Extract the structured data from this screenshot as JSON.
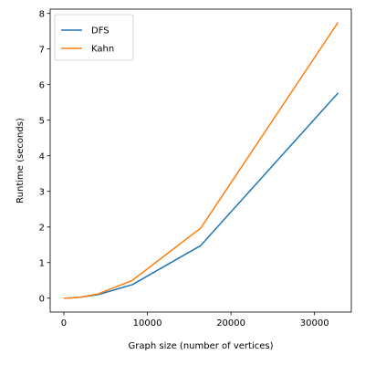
{
  "chart_data": {
    "type": "line",
    "xlabel": "Graph size (number of vertices)",
    "ylabel": "Runtime (seconds)",
    "xlim": [
      -1638,
      34406
    ],
    "ylim": [
      -0.39,
      8.12
    ],
    "xticks": [
      0,
      10000,
      20000,
      30000
    ],
    "xtick_labels": [
      "0",
      "10000",
      "20000",
      "30000"
    ],
    "yticks": [
      0,
      1,
      2,
      3,
      4,
      5,
      6,
      7,
      8
    ],
    "ytick_labels": [
      "0",
      "1",
      "2",
      "3",
      "4",
      "5",
      "6",
      "7",
      "8"
    ],
    "grid": false,
    "legend_position": "top-left",
    "x": [
      64,
      256,
      1024,
      2048,
      4096,
      8192,
      16384,
      32768
    ],
    "series": [
      {
        "name": "DFS",
        "color": "#1f77b4",
        "values": [
          0.0,
          0.0,
          0.01,
          0.03,
          0.1,
          0.38,
          1.48,
          5.75
        ]
      },
      {
        "name": "Kahn",
        "color": "#ff7f0e",
        "values": [
          0.0,
          0.0,
          0.01,
          0.03,
          0.12,
          0.5,
          1.97,
          7.73
        ]
      }
    ]
  }
}
